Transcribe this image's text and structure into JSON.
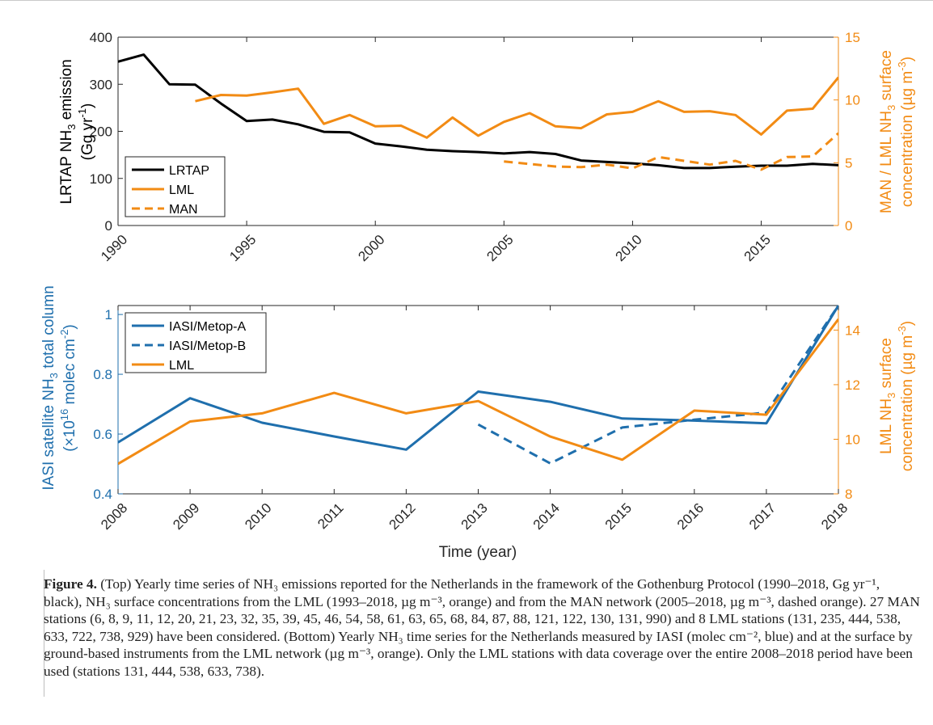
{
  "colors": {
    "black": "#000000",
    "orange": "#f28b14",
    "blue": "#1f6fad"
  },
  "chart_data": [
    {
      "type": "line",
      "title": "",
      "xlabel": "",
      "xlim": [
        1990,
        2018
      ],
      "xticks": [
        "1990",
        "1995",
        "2000",
        "2005",
        "2010",
        "2015"
      ],
      "ylabel_left": "LRTAP NH3 emission (Gg yr-1)",
      "ylabel_left_lines": [
        "LRTAP NH",
        "emission",
        "(Gg yr",
        ")"
      ],
      "ylabel_left_sub": "3",
      "ylabel_left_sup": "-1",
      "ylim_left": [
        0,
        400
      ],
      "yticks_left": [
        "0",
        "100",
        "200",
        "300",
        "400"
      ],
      "ylabel_right": "MAN / LML NH3 surface concentration (µg m-3)",
      "ylabel_right_lines": [
        "MAN / LML NH",
        "surface",
        "concentration (µg m",
        ")"
      ],
      "ylabel_right_sub": "3",
      "ylabel_right_sup": "-3",
      "ylim_right": [
        0,
        15
      ],
      "yticks_right": [
        "0",
        "5",
        "10",
        "15"
      ],
      "legend_position": "bottom-left",
      "series": [
        {
          "name": "LRTAP",
          "axis": "left",
          "style": "solid",
          "color": "#000000",
          "x": [
            1990,
            1991,
            1992,
            1993,
            1994,
            1995,
            1996,
            1997,
            1998,
            1999,
            2000,
            2001,
            2002,
            2003,
            2004,
            2005,
            2006,
            2007,
            2008,
            2009,
            2010,
            2011,
            2012,
            2013,
            2014,
            2015,
            2016,
            2017,
            2018
          ],
          "y": [
            348,
            363,
            300,
            299,
            259,
            222,
            225,
            215,
            199,
            198,
            174,
            168,
            161,
            158,
            156,
            153,
            156,
            152,
            138,
            135,
            132,
            128,
            122,
            122,
            125,
            127,
            127,
            131,
            128
          ]
        },
        {
          "name": "LML",
          "axis": "right",
          "style": "solid",
          "color": "#f28b14",
          "x": [
            1993,
            1994,
            1995,
            1996,
            1997,
            1998,
            1999,
            2000,
            2001,
            2002,
            2003,
            2004,
            2005,
            2006,
            2007,
            2008,
            2009,
            2010,
            2011,
            2012,
            2013,
            2014,
            2015,
            2016,
            2017,
            2018
          ],
          "y": [
            9.9,
            10.4,
            10.35,
            10.6,
            10.9,
            8.1,
            8.8,
            7.9,
            7.95,
            7.0,
            8.6,
            7.15,
            8.25,
            8.95,
            7.9,
            7.75,
            8.85,
            9.05,
            9.9,
            9.05,
            9.1,
            8.8,
            7.25,
            9.15,
            9.3,
            11.8
          ]
        },
        {
          "name": "MAN",
          "axis": "right",
          "style": "dashed",
          "color": "#f28b14",
          "x": [
            2005,
            2006,
            2007,
            2008,
            2009,
            2010,
            2011,
            2012,
            2013,
            2014,
            2015,
            2016,
            2017,
            2018
          ],
          "y": [
            5.1,
            4.9,
            4.7,
            4.65,
            4.85,
            4.55,
            5.45,
            5.15,
            4.85,
            5.15,
            4.45,
            5.45,
            5.5,
            7.35
          ]
        }
      ]
    },
    {
      "type": "line",
      "title": "",
      "xlabel": "Time (year)",
      "xlim": [
        2008,
        2018
      ],
      "xticks": [
        "2008",
        "2009",
        "2010",
        "2011",
        "2012",
        "2013",
        "2014",
        "2015",
        "2016",
        "2017",
        "2018"
      ],
      "ylabel_left": "IASI satellite NH3 total column (×10^16 molec cm-2)",
      "ylabel_left_lines": [
        "IASI satellite NH",
        "total column",
        "(×10",
        "molec cm",
        ")"
      ],
      "ylabel_left_sub": "3",
      "ylabel_left_sup_exp": "16",
      "ylabel_left_sup": "-2",
      "ylim_left": [
        0.4,
        1.03
      ],
      "yticks_left": [
        "0.4",
        "0.6",
        "0.8",
        "1"
      ],
      "ylabel_right": "LML NH3 surface concentration (µg m-3)",
      "ylabel_right_lines": [
        "LML NH",
        "surface",
        "concentration (µg m",
        ")"
      ],
      "ylabel_right_sub": "3",
      "ylabel_right_sup": "-3",
      "ylim_right": [
        8,
        14.9
      ],
      "yticks_right": [
        "8",
        "10",
        "12",
        "14"
      ],
      "legend_position": "top-left",
      "series": [
        {
          "name": "IASI/Metop-A",
          "axis": "left",
          "style": "solid",
          "color": "#1f6fad",
          "x": [
            2008,
            2009,
            2010,
            2011,
            2012,
            2013,
            2014,
            2015,
            2016,
            2017,
            2018
          ],
          "y": [
            0.572,
            0.72,
            0.638,
            0.592,
            0.548,
            0.742,
            0.708,
            0.652,
            0.645,
            0.636,
            1.03
          ]
        },
        {
          "name": "IASI/Metop-B",
          "axis": "left",
          "style": "dashed",
          "color": "#1f6fad",
          "x": [
            2013,
            2014,
            2015,
            2016,
            2017,
            2018
          ],
          "y": [
            0.632,
            0.502,
            0.622,
            0.648,
            0.672,
            1.03
          ]
        },
        {
          "name": "LML",
          "axis": "right",
          "style": "solid",
          "color": "#f28b14",
          "x": [
            2008,
            2009,
            2010,
            2011,
            2012,
            2013,
            2014,
            2015,
            2016,
            2017,
            2018
          ],
          "y": [
            9.1,
            10.65,
            10.95,
            11.7,
            10.95,
            11.4,
            10.1,
            9.25,
            11.05,
            10.9,
            14.4
          ]
        }
      ]
    }
  ],
  "caption": {
    "label": "Figure 4.",
    "text": " (Top) Yearly time series of NH₃ emissions reported for the Netherlands in the framework of the Gothenburg Protocol (1990–2018, Gg yr⁻¹, black), NH₃ surface concentrations from the LML (1993–2018, µg m⁻³, orange) and from the MAN network (2005–2018, µg m⁻³, dashed orange). 27 MAN stations (6, 8, 9, 11, 12, 20, 21, 23, 32, 35, 39, 45, 46, 54, 58, 61, 63, 65, 68, 84, 87, 88, 121, 122, 130, 131, 990) and 8 LML stations (131, 235, 444, 538, 633, 722, 738, 929) have been considered. (Bottom) Yearly NH₃ time series for the Netherlands measured by IASI (molec cm⁻², blue) and at the surface by ground-based instruments from the LML network (µg m⁻³, orange). Only the LML stations with data coverage over the entire 2008–2018 period have been used (stations 131, 444, 538, 633, 738)."
  }
}
